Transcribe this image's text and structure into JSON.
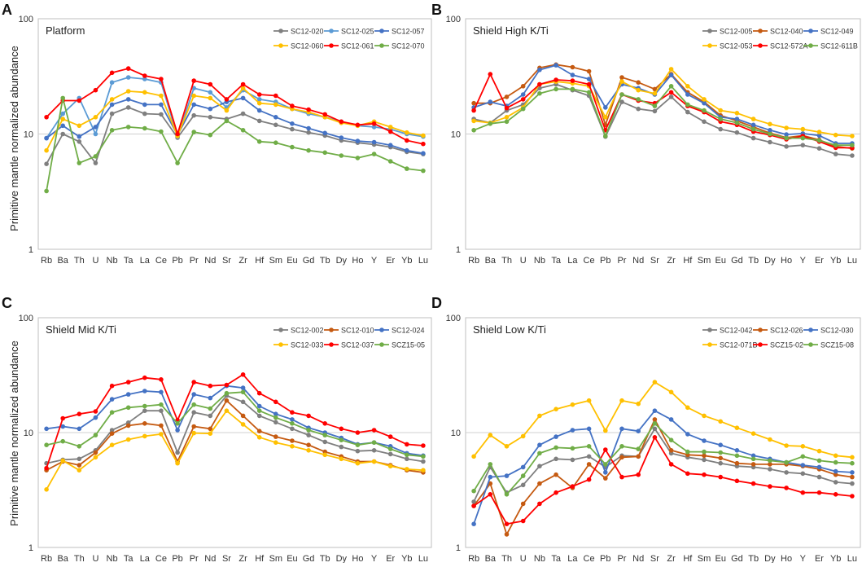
{
  "figure": {
    "y_axis_label": "Primitive mantle normalized abundance"
  },
  "chart_data": [
    {
      "type": "line",
      "panel_letter": "A",
      "title": "Platform",
      "ylabel": "Primitive mantle normalized abundance",
      "yscale": "log",
      "ylim": [
        1,
        100
      ],
      "yticks": [
        "1",
        "10",
        "100"
      ],
      "categories": [
        "Rb",
        "Ba",
        "Th",
        "U",
        "Nb",
        "Ta",
        "La",
        "Ce",
        "Pb",
        "Pr",
        "Nd",
        "Sr",
        "Zr",
        "Hf",
        "Sm",
        "Eu",
        "Gd",
        "Tb",
        "Dy",
        "Ho",
        "Y",
        "Er",
        "Yb",
        "Lu"
      ],
      "series": [
        {
          "name": "SC12-020",
          "color": "#7f7f7f",
          "values": [
            5.5,
            10,
            8.6,
            5.6,
            15,
            17,
            15,
            14.8,
            9.3,
            14.5,
            14,
            13.5,
            15,
            13,
            12,
            11,
            10.3,
            9.7,
            8.8,
            8.4,
            8.1,
            7.7,
            7,
            6.7
          ]
        },
        {
          "name": "SC12-025",
          "color": "#5b9bd5",
          "values": [
            9.2,
            15,
            20.5,
            10,
            28,
            31,
            30,
            28,
            9.5,
            25,
            23,
            17,
            24,
            20,
            19,
            16.5,
            15,
            14,
            12.8,
            11.8,
            11.5,
            11,
            10,
            9.5
          ]
        },
        {
          "name": "SC12-057",
          "color": "#4472c4",
          "values": [
            9.2,
            11.8,
            9.5,
            11.5,
            18,
            20,
            18,
            18,
            9.8,
            18,
            16.5,
            19,
            20.5,
            16,
            14,
            12.3,
            11.2,
            10.2,
            9.3,
            8.7,
            8.5,
            8,
            7.2,
            6.8
          ]
        },
        {
          "name": "SC12-060",
          "color": "#ffc000",
          "values": [
            7.2,
            13.5,
            11.8,
            14,
            20,
            23.5,
            23,
            21.5,
            9.6,
            21.5,
            20.5,
            16,
            25,
            18.5,
            18,
            16.5,
            15.5,
            14,
            12.5,
            11.8,
            12.8,
            11.5,
            10.3,
            9.7
          ]
        },
        {
          "name": "SC12-061",
          "color": "#ff0000",
          "values": [
            14,
            19.5,
            19.5,
            24,
            34,
            37,
            32,
            30,
            10,
            29,
            27,
            20,
            27,
            22,
            21.5,
            17.5,
            16.3,
            14.8,
            12.8,
            12,
            12.3,
            10.5,
            8.8,
            8.2
          ]
        },
        {
          "name": "SC12-070",
          "color": "#70ad47",
          "values": [
            3.2,
            20.5,
            5.6,
            6.4,
            10.8,
            11.5,
            11.2,
            10.5,
            5.6,
            10.4,
            9.8,
            13,
            10.8,
            8.6,
            8.4,
            7.7,
            7.2,
            6.9,
            6.5,
            6.2,
            6.7,
            5.8,
            5,
            4.8
          ]
        }
      ]
    },
    {
      "type": "line",
      "panel_letter": "B",
      "title": "Shield High K/Ti",
      "ylabel": "",
      "yscale": "log",
      "ylim": [
        1,
        100
      ],
      "yticks": [
        "1",
        "10",
        "100"
      ],
      "categories": [
        "Rb",
        "Ba",
        "Th",
        "U",
        "Nb",
        "Ta",
        "La",
        "Ce",
        "Pb",
        "Pr",
        "Nd",
        "Sr",
        "Zr",
        "Hf",
        "Sm",
        "Eu",
        "Gd",
        "Tb",
        "Dy",
        "Ho",
        "Y",
        "Er",
        "Yb",
        "Lu"
      ],
      "series": [
        {
          "name": "SC12-005",
          "color": "#7f7f7f",
          "values": [
            13.5,
            12.5,
            16,
            18,
            25,
            27,
            24,
            21.5,
            9.5,
            19,
            16.5,
            15.8,
            21,
            15.5,
            12.8,
            11,
            10.3,
            9.2,
            8.5,
            7.8,
            8,
            7.5,
            6.7,
            6.5
          ]
        },
        {
          "name": "SC12-040",
          "color": "#c55a11",
          "values": [
            18.5,
            18.5,
            21,
            26,
            37.5,
            40,
            38,
            35,
            12,
            31,
            28,
            24.5,
            33,
            23,
            19,
            14.5,
            13,
            11.5,
            10.2,
            9.3,
            9.7,
            8.9,
            7.8,
            7.5
          ]
        },
        {
          "name": "SC12-049",
          "color": "#4472c4",
          "values": [
            17,
            19,
            17.5,
            22,
            36,
            39.5,
            32.5,
            30,
            17,
            27,
            25,
            22,
            32.5,
            22,
            18.5,
            14,
            13.5,
            12,
            10.8,
            9.9,
            10.1,
            9.7,
            8.3,
            8.3
          ]
        },
        {
          "name": "SC12-053",
          "color": "#ffc000",
          "values": [
            13,
            12.5,
            14,
            17,
            27,
            28.5,
            27.5,
            26,
            14,
            28.5,
            24,
            22.5,
            36.5,
            26,
            20,
            16,
            15.2,
            13.5,
            12.2,
            11.3,
            11,
            10.4,
            9.8,
            9.6
          ]
        },
        {
          "name": "SC12-572A",
          "color": "#ff0000",
          "values": [
            16,
            33,
            16.8,
            20,
            27,
            29.5,
            29,
            27,
            10.8,
            22,
            19.5,
            18.5,
            23,
            17.5,
            15.5,
            12.8,
            12,
            10.5,
            9.8,
            9,
            9.6,
            8.6,
            7.6,
            7.6
          ]
        },
        {
          "name": "SC12-611B",
          "color": "#70ad47",
          "values": [
            10.8,
            12.3,
            12.8,
            16.5,
            22.5,
            24.5,
            24.5,
            23,
            9.6,
            22,
            20,
            17.5,
            26,
            18,
            16,
            13.5,
            12.5,
            11,
            10,
            9.2,
            9.2,
            8.8,
            8,
            8
          ]
        }
      ]
    },
    {
      "type": "line",
      "panel_letter": "C",
      "title": "Shield Mid K/Ti",
      "ylabel": "Primitive mantle normalized abundance",
      "yscale": "log",
      "ylim": [
        1,
        100
      ],
      "yticks": [
        "1",
        "10",
        "100"
      ],
      "categories": [
        "Rb",
        "Ba",
        "Th",
        "U",
        "Nb",
        "Ta",
        "La",
        "Ce",
        "Pb",
        "Pr",
        "Nd",
        "Sr",
        "Zr",
        "Hf",
        "Sm",
        "Eu",
        "Gd",
        "Tb",
        "Dy",
        "Ho",
        "Y",
        "Er",
        "Yb",
        "Lu"
      ],
      "series": [
        {
          "name": "SC12-002",
          "color": "#7f7f7f",
          "values": [
            5.4,
            5.8,
            5.9,
            7,
            10.5,
            12.2,
            15.5,
            15.5,
            6.7,
            15,
            14,
            21,
            18.5,
            14,
            12.3,
            10.8,
            9.5,
            8.3,
            7.5,
            6.9,
            7,
            6.5,
            5.9,
            5.6
          ]
        },
        {
          "name": "SC12-010",
          "color": "#c55a11",
          "values": [
            4.7,
            5.6,
            5.2,
            6.7,
            9.8,
            11.5,
            12,
            11.5,
            5.6,
            11.3,
            10.8,
            19,
            14,
            10.3,
            9.2,
            8.5,
            7.8,
            6.8,
            6.2,
            5.6,
            5.6,
            5.2,
            4.7,
            4.5
          ]
        },
        {
          "name": "SC12-024",
          "color": "#4472c4",
          "values": [
            10.8,
            11.3,
            10.8,
            13.5,
            19.5,
            21.5,
            23,
            22.5,
            10.5,
            21.5,
            20,
            25.5,
            24.5,
            17,
            14.5,
            13,
            11,
            10,
            9,
            7.9,
            8.2,
            7.6,
            6.6,
            6.3
          ]
        },
        {
          "name": "SC12-033",
          "color": "#ffc000",
          "values": [
            3.2,
            5.7,
            4.7,
            6.1,
            7.8,
            8.7,
            9.3,
            9.7,
            5.4,
            9.9,
            9.8,
            15.5,
            11.8,
            9.1,
            8.2,
            7.6,
            7,
            6.4,
            5.9,
            5.4,
            5.6,
            5.1,
            4.8,
            4.7
          ]
        },
        {
          "name": "SC12-037",
          "color": "#ff0000",
          "values": [
            4.9,
            13.3,
            14.5,
            15.3,
            25.5,
            27.5,
            30,
            29,
            12.8,
            27.5,
            25.5,
            26,
            32,
            22,
            18.5,
            15,
            14,
            12,
            10.8,
            10,
            10.5,
            9.2,
            7.9,
            7.7
          ]
        },
        {
          "name": "SCZ15-05",
          "color": "#70ad47",
          "values": [
            7.8,
            8.4,
            7.6,
            9.5,
            15,
            16.5,
            17,
            17.5,
            12,
            17.5,
            16.2,
            22,
            22.5,
            15.5,
            13.5,
            12,
            10.5,
            9.5,
            8.6,
            7.8,
            8.2,
            7.2,
            6.4,
            6.2
          ]
        }
      ]
    },
    {
      "type": "line",
      "panel_letter": "D",
      "title": "Shield Low K/Ti",
      "ylabel": "",
      "yscale": "log",
      "ylim": [
        1,
        100
      ],
      "yticks": [
        "1",
        "10",
        "100"
      ],
      "categories": [
        "Rb",
        "Ba",
        "Th",
        "U",
        "Nb",
        "Ta",
        "La",
        "Ce",
        "Pb",
        "Pr",
        "Nd",
        "Sr",
        "Zr",
        "Hf",
        "Sm",
        "Eu",
        "Gd",
        "Tb",
        "Dy",
        "Ho",
        "Y",
        "Er",
        "Yb",
        "Lu"
      ],
      "series": [
        {
          "name": "SC12-042",
          "color": "#7f7f7f",
          "values": [
            2.5,
            5,
            3,
            3.5,
            5.1,
            5.9,
            5.8,
            6.2,
            5,
            6.3,
            6.2,
            10.8,
            6.6,
            6.1,
            5.8,
            5.4,
            5.1,
            5,
            4.8,
            4.5,
            4.4,
            4.1,
            3.7,
            3.6
          ]
        },
        {
          "name": "SC12-026",
          "color": "#c55a11",
          "values": [
            2.3,
            3.6,
            1.3,
            2.4,
            3.6,
            4.3,
            3.3,
            5.3,
            4,
            6.1,
            6.2,
            13,
            7,
            6.4,
            6.3,
            6,
            5.4,
            5.3,
            5.3,
            5.3,
            5.1,
            4.8,
            4.3,
            4.1
          ]
        },
        {
          "name": "SC12-030",
          "color": "#4472c4",
          "values": [
            1.6,
            4.1,
            4.2,
            5,
            7.8,
            9.2,
            10.5,
            10.8,
            4.5,
            10.8,
            10.3,
            15.5,
            13,
            9.7,
            8.5,
            7.8,
            7,
            6.3,
            5.9,
            5.5,
            5.2,
            5,
            4.6,
            4.5
          ]
        },
        {
          "name": "SC12-071B",
          "color": "#ffc000",
          "values": [
            6.2,
            9.5,
            7.6,
            9.3,
            14,
            16,
            17.5,
            19,
            10.4,
            19,
            17.8,
            27.5,
            22.5,
            16.5,
            14,
            12.5,
            11,
            9.8,
            8.7,
            7.7,
            7.6,
            6.9,
            6.3,
            6.1
          ]
        },
        {
          "name": "SCZ15-02",
          "color": "#ff0000",
          "values": [
            2.3,
            2.9,
            1.6,
            1.7,
            2.4,
            3,
            3.4,
            3.9,
            7.1,
            4.1,
            4.3,
            9.1,
            5.3,
            4.4,
            4.3,
            4.1,
            3.8,
            3.6,
            3.4,
            3.3,
            3,
            3,
            2.9,
            2.8
          ]
        },
        {
          "name": "SCZ15-08",
          "color": "#70ad47",
          "values": [
            3.1,
            5.3,
            2.9,
            4.2,
            6.6,
            7.4,
            7.3,
            7.6,
            5.3,
            7.6,
            7.2,
            12,
            8.6,
            6.8,
            6.8,
            6.7,
            6.3,
            5.9,
            5.7,
            5.5,
            6.2,
            5.7,
            5.5,
            5.4
          ]
        }
      ]
    }
  ]
}
